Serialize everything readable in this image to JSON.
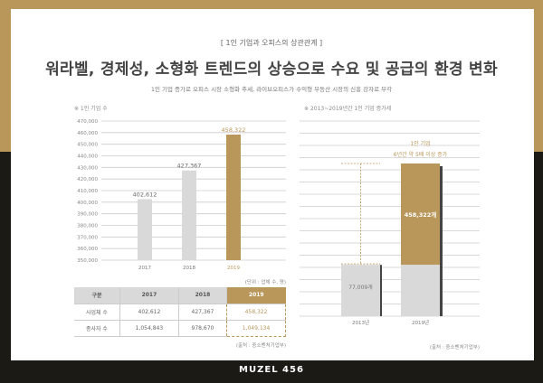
{
  "header": {
    "subtitle": "[  1인 기업과 오피스의 상관관계  ]",
    "title": "워라벨, 경제성, 소형화 트렌드의 상승으로 수요 및 공급의 환경 변화",
    "description": "1인 기업 증가로 오피스 시장 소형화 추세, 라이브오피스가 수익형 부동산 시장의 신흥 강자로 부각"
  },
  "colors": {
    "gold": "#b9975b",
    "grey": "#d9d9d9",
    "dark": "#1c1a14"
  },
  "chart_data": [
    {
      "type": "bar",
      "title": "※ 1인 기업 수",
      "categories": [
        "2017",
        "2018",
        "2019"
      ],
      "values": [
        402612,
        427367,
        458322
      ],
      "value_labels": [
        "402,612",
        "427,367",
        "458,322"
      ],
      "ylim": [
        350000,
        470000
      ],
      "yticks": [
        "470,000",
        "460,000",
        "450,000",
        "440,000",
        "430,000",
        "420,000",
        "410,000",
        "400,000",
        "390,000",
        "380,000",
        "370,000",
        "360,000",
        "350,000"
      ],
      "grid": true,
      "highlight": "2019"
    },
    {
      "type": "bar",
      "title": "※ 2013~2019년간 1인 기업 증가세",
      "categories": [
        "2013년",
        "2019년"
      ],
      "values": [
        77009,
        458322
      ],
      "value_labels": [
        "77,009개",
        "458,322개"
      ],
      "annotation": [
        "1인 기업",
        "6년간 약 5배 이상 증가"
      ],
      "grid": true,
      "source": "(출처 : 중소벤처기업부)"
    }
  ],
  "table": {
    "unit": "(단위 : 업체 수, 명)",
    "headers": [
      "구분",
      "2017",
      "2018",
      "2019"
    ],
    "rows": [
      [
        "사업체 수",
        "402,612",
        "427,367",
        "458,322"
      ],
      [
        "종사자 수",
        "1,054,843",
        "978,670",
        "1,049,134"
      ]
    ],
    "source": "(출처 : 중소벤처기업부)"
  },
  "brand": "MUZEL 456"
}
